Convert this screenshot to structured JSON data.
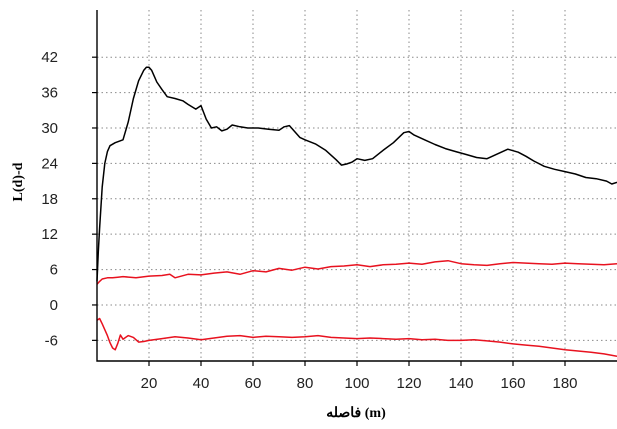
{
  "chart_data": {
    "type": "line",
    "xlabel": "فاصله (m)",
    "ylabel": "L(d)-d",
    "xlim": [
      0,
      200
    ],
    "ylim": [
      -9.5,
      50
    ],
    "xticks": [
      20,
      40,
      60,
      80,
      100,
      120,
      140,
      160,
      180
    ],
    "xtick_labels": [
      "20",
      "40",
      "60",
      "80",
      "100",
      "120",
      "140",
      "160",
      "180"
    ],
    "yticks": [
      -6,
      0,
      6,
      12,
      18,
      24,
      30,
      36,
      42
    ],
    "ytick_labels": [
      "-6",
      "0",
      "6",
      "12",
      "18",
      "24",
      "30",
      "36",
      "42"
    ],
    "grid": true,
    "series": [
      {
        "color": "#000000",
        "x": [
          0,
          0.5,
          1,
          2,
          3,
          4,
          5,
          7,
          10,
          12,
          14,
          16,
          18,
          19,
          20,
          21,
          22,
          23,
          25,
          27,
          30,
          33,
          35,
          38,
          40,
          42,
          44,
          46,
          48,
          50,
          52,
          55,
          58,
          62,
          66,
          70,
          72,
          74,
          76,
          78,
          80,
          84,
          88,
          92,
          94,
          96,
          98,
          100,
          103,
          106,
          110,
          114,
          118,
          120,
          122,
          126,
          130,
          134,
          138,
          142,
          146,
          150,
          154,
          158,
          162,
          165,
          168,
          172,
          176,
          180,
          184,
          188,
          192,
          196,
          198,
          200
        ],
        "y": [
          4,
          9,
          13,
          20,
          24,
          26,
          27,
          27.5,
          28,
          31,
          35,
          38,
          39.8,
          40.3,
          40.3,
          39.8,
          38.8,
          37.8,
          36.5,
          35.3,
          35,
          34.6,
          34,
          33.2,
          33.8,
          31.5,
          30,
          30.2,
          29.5,
          29.8,
          30.5,
          30.2,
          30,
          30,
          29.8,
          29.6,
          30.2,
          30.4,
          29.4,
          28.4,
          28,
          27.3,
          26.2,
          24.6,
          23.7,
          23.9,
          24.2,
          24.8,
          24.5,
          24.8,
          26.2,
          27.5,
          29.2,
          29.4,
          28.8,
          28,
          27.2,
          26.5,
          26,
          25.5,
          25,
          24.8,
          25.6,
          26.4,
          25.9,
          25.2,
          24.4,
          23.5,
          23,
          22.6,
          22.2,
          21.6,
          21.4,
          21,
          20.5,
          20.8
        ]
      },
      {
        "color": "#e8121f",
        "x": [
          0,
          1,
          2,
          4,
          6,
          8,
          10,
          15,
          20,
          25,
          28,
          30,
          35,
          40,
          45,
          50,
          55,
          60,
          65,
          70,
          75,
          80,
          85,
          90,
          95,
          100,
          105,
          110,
          115,
          120,
          125,
          130,
          135,
          140,
          145,
          150,
          155,
          160,
          165,
          170,
          175,
          180,
          185,
          190,
          195,
          200
        ],
        "y": [
          3.5,
          4,
          4.4,
          4.6,
          4.6,
          4.7,
          4.8,
          4.6,
          4.9,
          5,
          5.2,
          4.6,
          5.2,
          5.1,
          5.4,
          5.6,
          5.2,
          5.8,
          5.6,
          6.2,
          5.9,
          6.4,
          6.1,
          6.5,
          6.6,
          6.8,
          6.5,
          6.8,
          6.9,
          7.1,
          6.9,
          7.3,
          7.5,
          7,
          6.8,
          6.7,
          7,
          7.2,
          7.1,
          7,
          6.9,
          7.1,
          7,
          6.9,
          6.8,
          7
        ]
      },
      {
        "color": "#e8121f",
        "x": [
          0,
          1,
          2,
          3,
          4,
          5,
          6,
          7,
          8,
          9,
          10,
          12,
          14,
          16,
          18,
          20,
          25,
          30,
          35,
          40,
          45,
          50,
          55,
          60,
          65,
          70,
          75,
          80,
          85,
          90,
          95,
          100,
          105,
          110,
          115,
          120,
          125,
          130,
          135,
          140,
          145,
          150,
          155,
          160,
          165,
          170,
          175,
          180,
          185,
          190,
          195,
          200
        ],
        "y": [
          -2.6,
          -2.3,
          -3.2,
          -4.2,
          -5.2,
          -6.4,
          -7.3,
          -7.6,
          -6.5,
          -5.1,
          -5.8,
          -5.2,
          -5.5,
          -6.3,
          -6.2,
          -6,
          -5.7,
          -5.4,
          -5.6,
          -5.9,
          -5.6,
          -5.3,
          -5.2,
          -5.5,
          -5.3,
          -5.4,
          -5.5,
          -5.4,
          -5.2,
          -5.5,
          -5.6,
          -5.7,
          -5.6,
          -5.7,
          -5.8,
          -5.7,
          -5.9,
          -5.8,
          -6,
          -6,
          -5.9,
          -6.1,
          -6.3,
          -6.6,
          -6.8,
          -7,
          -7.3,
          -7.6,
          -7.8,
          -8,
          -8.3,
          -8.7
        ]
      }
    ]
  }
}
